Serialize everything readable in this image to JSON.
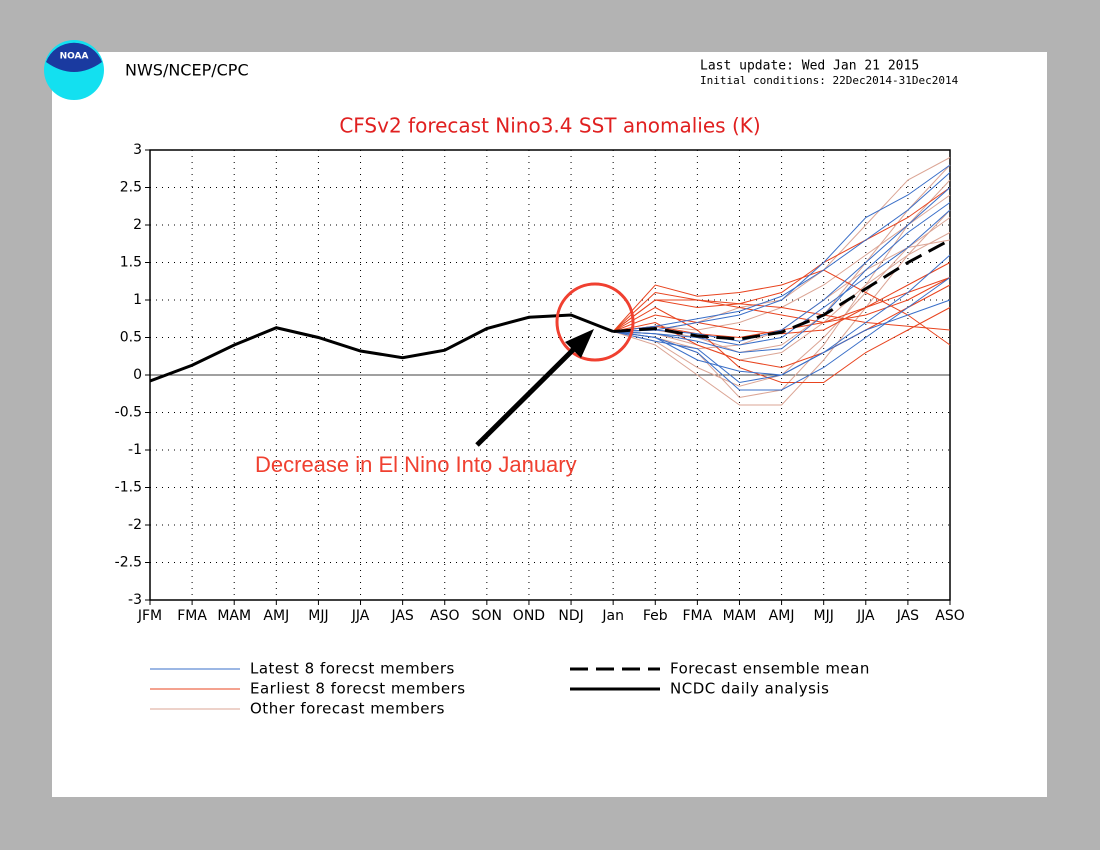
{
  "header": {
    "logo_text": "NOAA",
    "agency": "NWS/NCEP/CPC",
    "last_update": "Last update: Wed Jan 21 2015",
    "initial_conditions": "Initial conditions: 22Dec2014-31Dec2014"
  },
  "chart_data": {
    "type": "line",
    "title": "CFSv2 forecast Nino3.4 SST anomalies (K)",
    "categories": [
      "JFM",
      "FMA",
      "MAM",
      "AMJ",
      "MJJ",
      "JJA",
      "JAS",
      "ASO",
      "SON",
      "OND",
      "NDJ",
      "Jan",
      "Feb",
      "FMA",
      "MAM",
      "AMJ",
      "MJJ",
      "JJA",
      "JAS",
      "ASO"
    ],
    "ylim": [
      -3,
      3
    ],
    "yticks": [
      -3,
      -2.5,
      -2,
      -1.5,
      -1,
      -0.5,
      0,
      0.5,
      1,
      1.5,
      2,
      2.5,
      3
    ],
    "grid": true,
    "series": [
      {
        "name": "Latest 8 forecst members",
        "color": "#3a6fc8",
        "members": [
          [
            null,
            null,
            null,
            null,
            null,
            null,
            null,
            null,
            null,
            null,
            null,
            0.58,
            0.6,
            0.7,
            0.8,
            1.0,
            1.5,
            2.1,
            2.4,
            2.8
          ],
          [
            null,
            null,
            null,
            null,
            null,
            null,
            null,
            null,
            null,
            null,
            null,
            0.58,
            0.55,
            0.45,
            0.3,
            0.35,
            0.8,
            1.4,
            1.9,
            2.3
          ],
          [
            null,
            null,
            null,
            null,
            null,
            null,
            null,
            null,
            null,
            null,
            null,
            0.58,
            0.5,
            0.3,
            -0.2,
            -0.2,
            0.1,
            0.5,
            0.9,
            1.3
          ],
          [
            null,
            null,
            null,
            null,
            null,
            null,
            null,
            null,
            null,
            null,
            null,
            0.58,
            0.65,
            0.75,
            0.85,
            1.05,
            1.4,
            1.8,
            2.2,
            2.7
          ],
          [
            null,
            null,
            null,
            null,
            null,
            null,
            null,
            null,
            null,
            null,
            null,
            0.58,
            0.5,
            0.2,
            0.05,
            0.0,
            0.3,
            0.7,
            1.1,
            1.6
          ],
          [
            null,
            null,
            null,
            null,
            null,
            null,
            null,
            null,
            null,
            null,
            null,
            0.58,
            0.6,
            0.55,
            0.45,
            0.6,
            1.0,
            1.5,
            2.0,
            2.5
          ],
          [
            null,
            null,
            null,
            null,
            null,
            null,
            null,
            null,
            null,
            null,
            null,
            0.58,
            0.45,
            0.35,
            -0.1,
            0.0,
            0.3,
            0.6,
            0.8,
            1.0
          ],
          [
            null,
            null,
            null,
            null,
            null,
            null,
            null,
            null,
            null,
            null,
            null,
            0.58,
            0.55,
            0.5,
            0.4,
            0.5,
            0.9,
            1.3,
            1.7,
            2.2
          ]
        ]
      },
      {
        "name": "Earliest 8 forecst members",
        "color": "#e8441f",
        "members": [
          [
            null,
            null,
            null,
            null,
            null,
            null,
            null,
            null,
            null,
            null,
            null,
            0.58,
            1.2,
            1.05,
            1.1,
            1.2,
            1.4,
            1.1,
            0.8,
            0.4
          ],
          [
            null,
            null,
            null,
            null,
            null,
            null,
            null,
            null,
            null,
            null,
            null,
            0.58,
            1.0,
            1.0,
            0.9,
            0.8,
            0.7,
            0.8,
            1.0,
            1.3
          ],
          [
            null,
            null,
            null,
            null,
            null,
            null,
            null,
            null,
            null,
            null,
            null,
            0.58,
            0.9,
            0.6,
            0.1,
            -0.1,
            -0.1,
            0.3,
            0.6,
            0.9
          ],
          [
            null,
            null,
            null,
            null,
            null,
            null,
            null,
            null,
            null,
            null,
            null,
            0.58,
            1.1,
            1.0,
            0.95,
            0.9,
            0.8,
            0.7,
            0.65,
            0.6
          ],
          [
            null,
            null,
            null,
            null,
            null,
            null,
            null,
            null,
            null,
            null,
            null,
            0.58,
            0.8,
            0.7,
            0.6,
            0.55,
            0.6,
            0.9,
            1.2,
            1.5
          ],
          [
            null,
            null,
            null,
            null,
            null,
            null,
            null,
            null,
            null,
            null,
            null,
            0.58,
            0.7,
            0.4,
            0.2,
            0.1,
            0.3,
            0.6,
            0.9,
            1.2
          ],
          [
            null,
            null,
            null,
            null,
            null,
            null,
            null,
            null,
            null,
            null,
            null,
            0.58,
            1.0,
            0.9,
            0.95,
            1.1,
            1.5,
            1.8,
            2.1,
            2.5
          ],
          [
            null,
            null,
            null,
            null,
            null,
            null,
            null,
            null,
            null,
            null,
            null,
            0.58,
            0.65,
            0.55,
            0.5,
            0.6,
            0.7,
            0.9,
            1.1,
            1.3
          ]
        ]
      },
      {
        "name": "Other forecast members",
        "color": "#dba595",
        "members": [
          [
            null,
            null,
            null,
            null,
            null,
            null,
            null,
            null,
            null,
            null,
            null,
            0.58,
            0.4,
            0.0,
            -0.4,
            -0.4,
            0.2,
            0.9,
            1.6,
            2.2
          ],
          [
            null,
            null,
            null,
            null,
            null,
            null,
            null,
            null,
            null,
            null,
            null,
            0.58,
            0.5,
            0.3,
            -0.3,
            -0.2,
            0.4,
            1.2,
            2.0,
            2.6
          ],
          [
            null,
            null,
            null,
            null,
            null,
            null,
            null,
            null,
            null,
            null,
            null,
            0.58,
            0.6,
            0.7,
            0.9,
            1.0,
            1.4,
            2.0,
            2.6,
            2.9
          ],
          [
            null,
            null,
            null,
            null,
            null,
            null,
            null,
            null,
            null,
            null,
            null,
            0.58,
            0.55,
            0.4,
            0.2,
            0.3,
            0.7,
            1.2,
            1.6,
            1.9
          ],
          [
            null,
            null,
            null,
            null,
            null,
            null,
            null,
            null,
            null,
            null,
            null,
            0.58,
            0.45,
            0.1,
            -0.15,
            0.0,
            0.5,
            1.1,
            1.7,
            2.1
          ],
          [
            null,
            null,
            null,
            null,
            null,
            null,
            null,
            null,
            null,
            null,
            null,
            0.58,
            0.65,
            0.6,
            0.7,
            0.9,
            1.2,
            1.6,
            2.0,
            2.4
          ],
          [
            null,
            null,
            null,
            null,
            null,
            null,
            null,
            null,
            null,
            null,
            null,
            0.58,
            0.5,
            0.35,
            0.4,
            0.6,
            1.0,
            1.4,
            1.7,
            1.8
          ],
          [
            null,
            null,
            null,
            null,
            null,
            null,
            null,
            null,
            null,
            null,
            null,
            0.58,
            0.6,
            0.5,
            0.3,
            0.4,
            0.8,
            1.5,
            2.2,
            2.8
          ]
        ]
      },
      {
        "name": "Forecast ensemble mean",
        "color": "#000000",
        "dashed": true,
        "values": [
          null,
          null,
          null,
          null,
          null,
          null,
          null,
          null,
          null,
          null,
          null,
          0.58,
          0.62,
          0.52,
          0.48,
          0.57,
          0.8,
          1.15,
          1.5,
          1.8
        ]
      },
      {
        "name": "NCDC daily analysis",
        "color": "#000000",
        "values": [
          -0.08,
          0.13,
          0.4,
          0.63,
          0.5,
          0.32,
          0.23,
          0.33,
          0.62,
          0.77,
          0.8,
          0.58,
          null,
          null,
          null,
          null,
          null,
          null,
          null,
          null
        ]
      }
    ],
    "annotation": "Decrease in El Nino Into January"
  }
}
